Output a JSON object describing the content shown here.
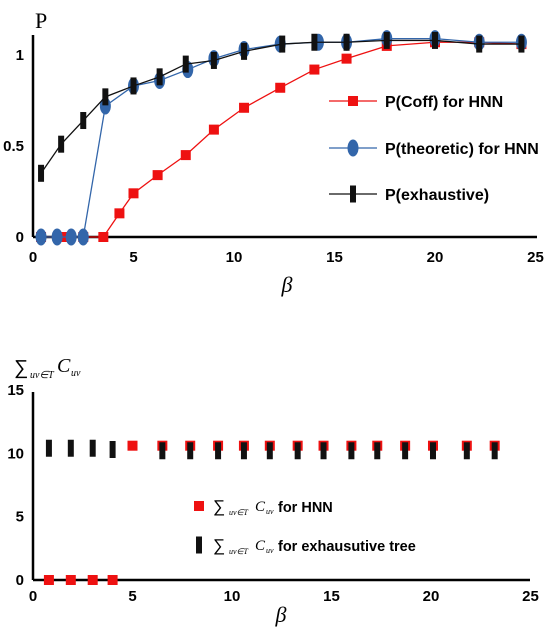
{
  "chart_data": [
    {
      "type": "line",
      "ylabel": "P",
      "xlabel": "β",
      "xlim": [
        0,
        25
      ],
      "ylim": [
        0,
        1.08
      ],
      "xticks": [
        "0",
        "5",
        "10",
        "15",
        "20",
        "25"
      ],
      "yticks": [
        "0",
        "0.5",
        "1"
      ],
      "legend": {
        "placement": "right",
        "entries": [
          "P(Coff) for HNN",
          "P(theoretic) for HNN",
          "P(exhaustive)"
        ]
      },
      "series": [
        {
          "name": "P(Coff) for HNN",
          "color": "#ee1111",
          "marker": "square",
          "x": [
            0.4,
            1.5,
            2.5,
            3.5,
            4.3,
            5.0,
            6.2,
            7.6,
            9.0,
            10.5,
            12.3,
            14.0,
            15.6,
            17.6,
            20.0,
            22.2,
            24.3
          ],
          "y": [
            0.0,
            0.0,
            0.0,
            0.0,
            0.13,
            0.24,
            0.34,
            0.45,
            0.59,
            0.71,
            0.82,
            0.92,
            0.98,
            1.05,
            1.07,
            1.07,
            1.06
          ]
        },
        {
          "name": "P(theoretic) for HNN",
          "color": "#3366aa",
          "marker": "ellipse",
          "x": [
            0.4,
            1.2,
            1.9,
            2.5,
            3.6,
            5.0,
            6.3,
            7.7,
            9.0,
            10.5,
            12.3,
            14.2,
            15.6,
            17.6,
            20.0,
            22.2,
            24.3
          ],
          "y": [
            0.0,
            0.0,
            0.0,
            0.0,
            0.72,
            0.83,
            0.86,
            0.92,
            0.98,
            1.03,
            1.06,
            1.07,
            1.07,
            1.09,
            1.09,
            1.07,
            1.07
          ]
        },
        {
          "name": "P(exhaustive)",
          "color": "#111111",
          "marker": "vbar",
          "x": [
            0.4,
            1.4,
            2.5,
            3.6,
            5.0,
            6.3,
            7.6,
            9.0,
            10.5,
            12.4,
            14.0,
            15.6,
            17.6,
            20.0,
            22.2,
            24.3
          ],
          "y": [
            0.35,
            0.51,
            0.64,
            0.77,
            0.83,
            0.88,
            0.95,
            0.97,
            1.02,
            1.06,
            1.07,
            1.07,
            1.08,
            1.08,
            1.06,
            1.06
          ]
        }
      ]
    },
    {
      "type": "scatter",
      "ylabel": "∑",
      "ylabel_sub": "uv∈T",
      "ylabel_var": "C",
      "ylabel_var_sub": "uv",
      "xlabel": "β",
      "xlim": [
        0,
        25
      ],
      "ylim": [
        0,
        15
      ],
      "xticks": [
        "0",
        "5",
        "10",
        "15",
        "20",
        "25"
      ],
      "yticks": [
        "0",
        "5",
        "10",
        "15"
      ],
      "legend": {
        "placement": "center",
        "entries": [
          {
            "sum": "∑",
            "sub": "uv∈T",
            "var": "C",
            "var_sub": "uv",
            "text": "for HNN"
          },
          {
            "sum": "∑",
            "sub": "uv∈T",
            "var": "C",
            "var_sub": "uv",
            "text": "for exhausutive tree"
          }
        ]
      },
      "series": [
        {
          "name": "HNN",
          "color": "#ee1111",
          "marker": "square",
          "x": [
            0.8,
            1.9,
            3.0,
            4.0,
            5.0,
            6.5,
            7.9,
            9.3,
            10.6,
            11.9,
            13.3,
            14.6,
            16.0,
            17.3,
            18.7,
            20.1,
            21.8,
            23.2
          ],
          "y": [
            0,
            0,
            0,
            0,
            10.6,
            10.6,
            10.6,
            10.6,
            10.6,
            10.6,
            10.6,
            10.6,
            10.6,
            10.6,
            10.6,
            10.6,
            10.6,
            10.6
          ]
        },
        {
          "name": "exhausutive tree",
          "color": "#111111",
          "marker": "vbar",
          "x": [
            0.8,
            1.9,
            3.0,
            4.0,
            6.5,
            7.9,
            9.3,
            10.6,
            11.9,
            13.3,
            14.6,
            16.0,
            17.3,
            18.7,
            20.1,
            21.8,
            23.2
          ],
          "y": [
            10.4,
            10.4,
            10.4,
            10.3,
            10.2,
            10.2,
            10.2,
            10.2,
            10.2,
            10.2,
            10.2,
            10.2,
            10.2,
            10.2,
            10.2,
            10.2,
            10.2
          ]
        }
      ]
    }
  ]
}
